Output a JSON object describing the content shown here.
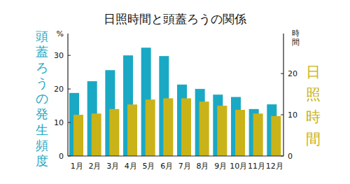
{
  "chart_data": {
    "type": "bar",
    "title": "日照時間と頭蓋ろうの関係",
    "categories": [
      "1月",
      "2月",
      "3月",
      "4月",
      "5月",
      "6月",
      "7月",
      "8月",
      "9月",
      "10月",
      "11月",
      "12月"
    ],
    "series": [
      {
        "name": "頭蓋ろうの発生頻度",
        "color": "#1aa9c4",
        "values": [
          18.8,
          22.3,
          25.6,
          30,
          32.3,
          29.8,
          21.3,
          20,
          18.3,
          17.6,
          14,
          15.4
        ]
      },
      {
        "name": "日照時間",
        "color": "#c9b318",
        "axis": "y2",
        "values": [
          10,
          10.3,
          11.4,
          12.5,
          13.7,
          14,
          14,
          13.2,
          12.2,
          11.2,
          10.3,
          9.7
        ]
      }
    ],
    "y_unit": "%",
    "y2_unit": "時間",
    "ylim": [
      0,
      36.5
    ],
    "yticks": [
      0,
      10,
      20,
      30
    ],
    "y2lim": [
      0,
      29.7
    ],
    "y2ticks": [
      0,
      10,
      20
    ],
    "grid": false
  }
}
